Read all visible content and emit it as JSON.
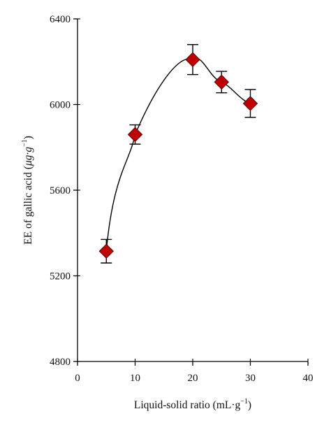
{
  "chart_data": {
    "type": "scatter",
    "title": "",
    "xlabel": "Liquid-solid ratio (mL·g",
    "xlabel_sup": "−1",
    "xlabel_suffix": ")",
    "ylabel": "EE of gallic acid (",
    "ylabel_unit": "μg·g",
    "ylabel_sup": "−1",
    "ylabel_suffix": ")",
    "xlim": [
      0,
      40
    ],
    "ylim": [
      4800,
      6400
    ],
    "x_ticks": [
      "0",
      "10",
      "20",
      "30",
      "40"
    ],
    "y_ticks": [
      "4800",
      "5200",
      "5600",
      "6000",
      "6400"
    ],
    "grid": false,
    "marker": "diamond",
    "colors": {
      "marker_fill": "#c00000",
      "marker_edge": "#5a0000",
      "line": "#000000",
      "error_bar": "#000000"
    },
    "series": [
      {
        "x": [
          5,
          10,
          20,
          25,
          30
        ],
        "y": [
          5315,
          5860,
          6210,
          6105,
          6005
        ],
        "y_error": [
          55,
          45,
          70,
          50,
          65
        ]
      }
    ]
  }
}
